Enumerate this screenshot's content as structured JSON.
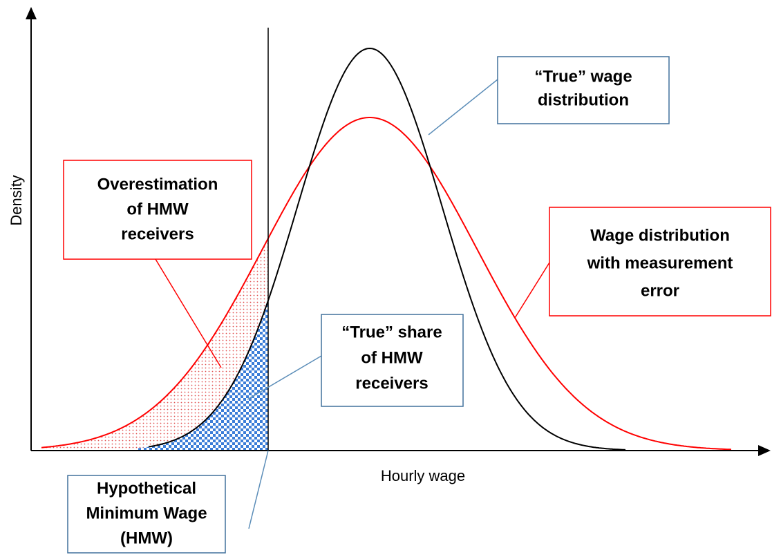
{
  "axes": {
    "y_label": "Density",
    "x_label": "Hourly wage"
  },
  "callouts": {
    "true_distribution": [
      "“True” wage",
      "distribution"
    ],
    "overestimation": [
      "Overestimation",
      "of HMW",
      "receivers"
    ],
    "measurement_error": [
      "Wage distribution",
      "with measurement",
      "error"
    ],
    "true_share": [
      "“True” share",
      "of HMW",
      "receivers"
    ],
    "hmw": [
      "Hypothetical",
      "Minimum Wage",
      "(HMW)"
    ]
  }
}
